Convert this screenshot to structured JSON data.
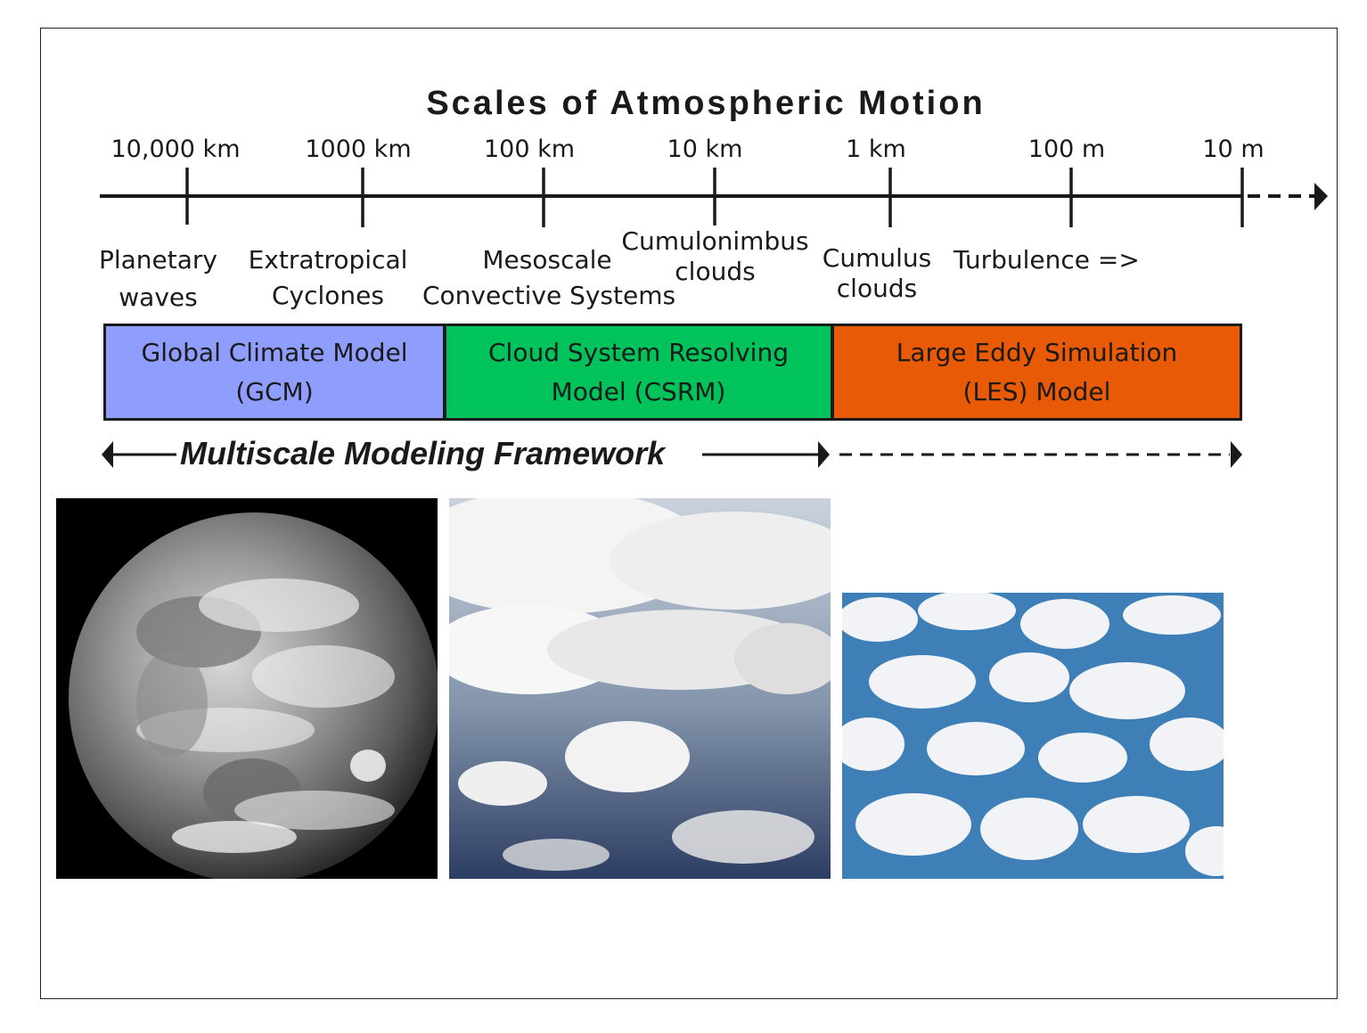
{
  "title": "Scales of Atmospheric Motion",
  "scale_ticks": [
    "10,000 km",
    "1000 km",
    "100 km",
    "10 km",
    "1 km",
    "100 m",
    "10 m"
  ],
  "phenomena": {
    "planetary": [
      "Planetary",
      "waves"
    ],
    "extratropical": [
      "Extratropical",
      "Cyclones"
    ],
    "mesoscale": [
      "Mesoscale",
      "Convective Systems"
    ],
    "cumulonimbus": [
      "Cumulonimbus",
      "clouds"
    ],
    "cumulus": [
      "Cumulus",
      "clouds"
    ],
    "turbulence": "Turbulence =>"
  },
  "models": {
    "gcm": {
      "line1": "Global Climate Model",
      "line2": "(GCM)",
      "color": "#8f9dfd"
    },
    "csrm": {
      "line1": "Cloud System Resolving",
      "line2": "Model (CSRM)",
      "color": "#00c35b"
    },
    "les": {
      "line1": "Large Eddy Simulation",
      "line2": "(LES) Model",
      "color": "#e85a05"
    }
  },
  "framework_label": "Multiscale Modeling Framework",
  "images": {
    "earth": "earth-satellite-image",
    "convective": "convective-cloud-system-image",
    "cumulus": "cumulus-field-image"
  }
}
